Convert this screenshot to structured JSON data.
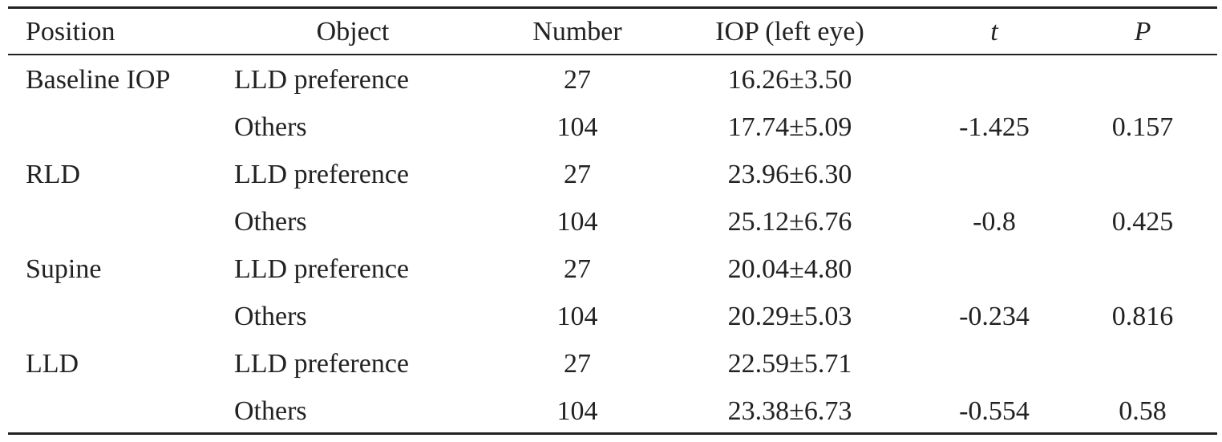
{
  "table": {
    "columns": [
      "Position",
      "Object",
      "Number",
      "IOP (left eye)",
      "t",
      "P"
    ],
    "rows": [
      {
        "position": "Baseline IOP",
        "object": "LLD preference",
        "number": "27",
        "iop": "16.26±3.50"
      },
      {
        "object": "Others",
        "number": "104",
        "iop": "17.74±5.09",
        "t": "-1.425",
        "p": "0.157"
      },
      {
        "position": "RLD",
        "object": "LLD preference",
        "number": "27",
        "iop": "23.96±6.30"
      },
      {
        "object": "Others",
        "number": "104",
        "iop": "25.12±6.76",
        "t": "-0.8",
        "p": "0.425"
      },
      {
        "position": "Supine",
        "object": "LLD preference",
        "number": "27",
        "iop": "20.04±4.80"
      },
      {
        "object": "Others",
        "number": "104",
        "iop": "20.29±5.03",
        "t": "-0.234",
        "p": "0.816"
      },
      {
        "position": "LLD",
        "object": "LLD preference",
        "number": "27",
        "iop": "22.59±5.71"
      },
      {
        "object": "Others",
        "number": "104",
        "iop": "23.38±6.73",
        "t": "-0.554",
        "p": "0.58"
      }
    ]
  }
}
